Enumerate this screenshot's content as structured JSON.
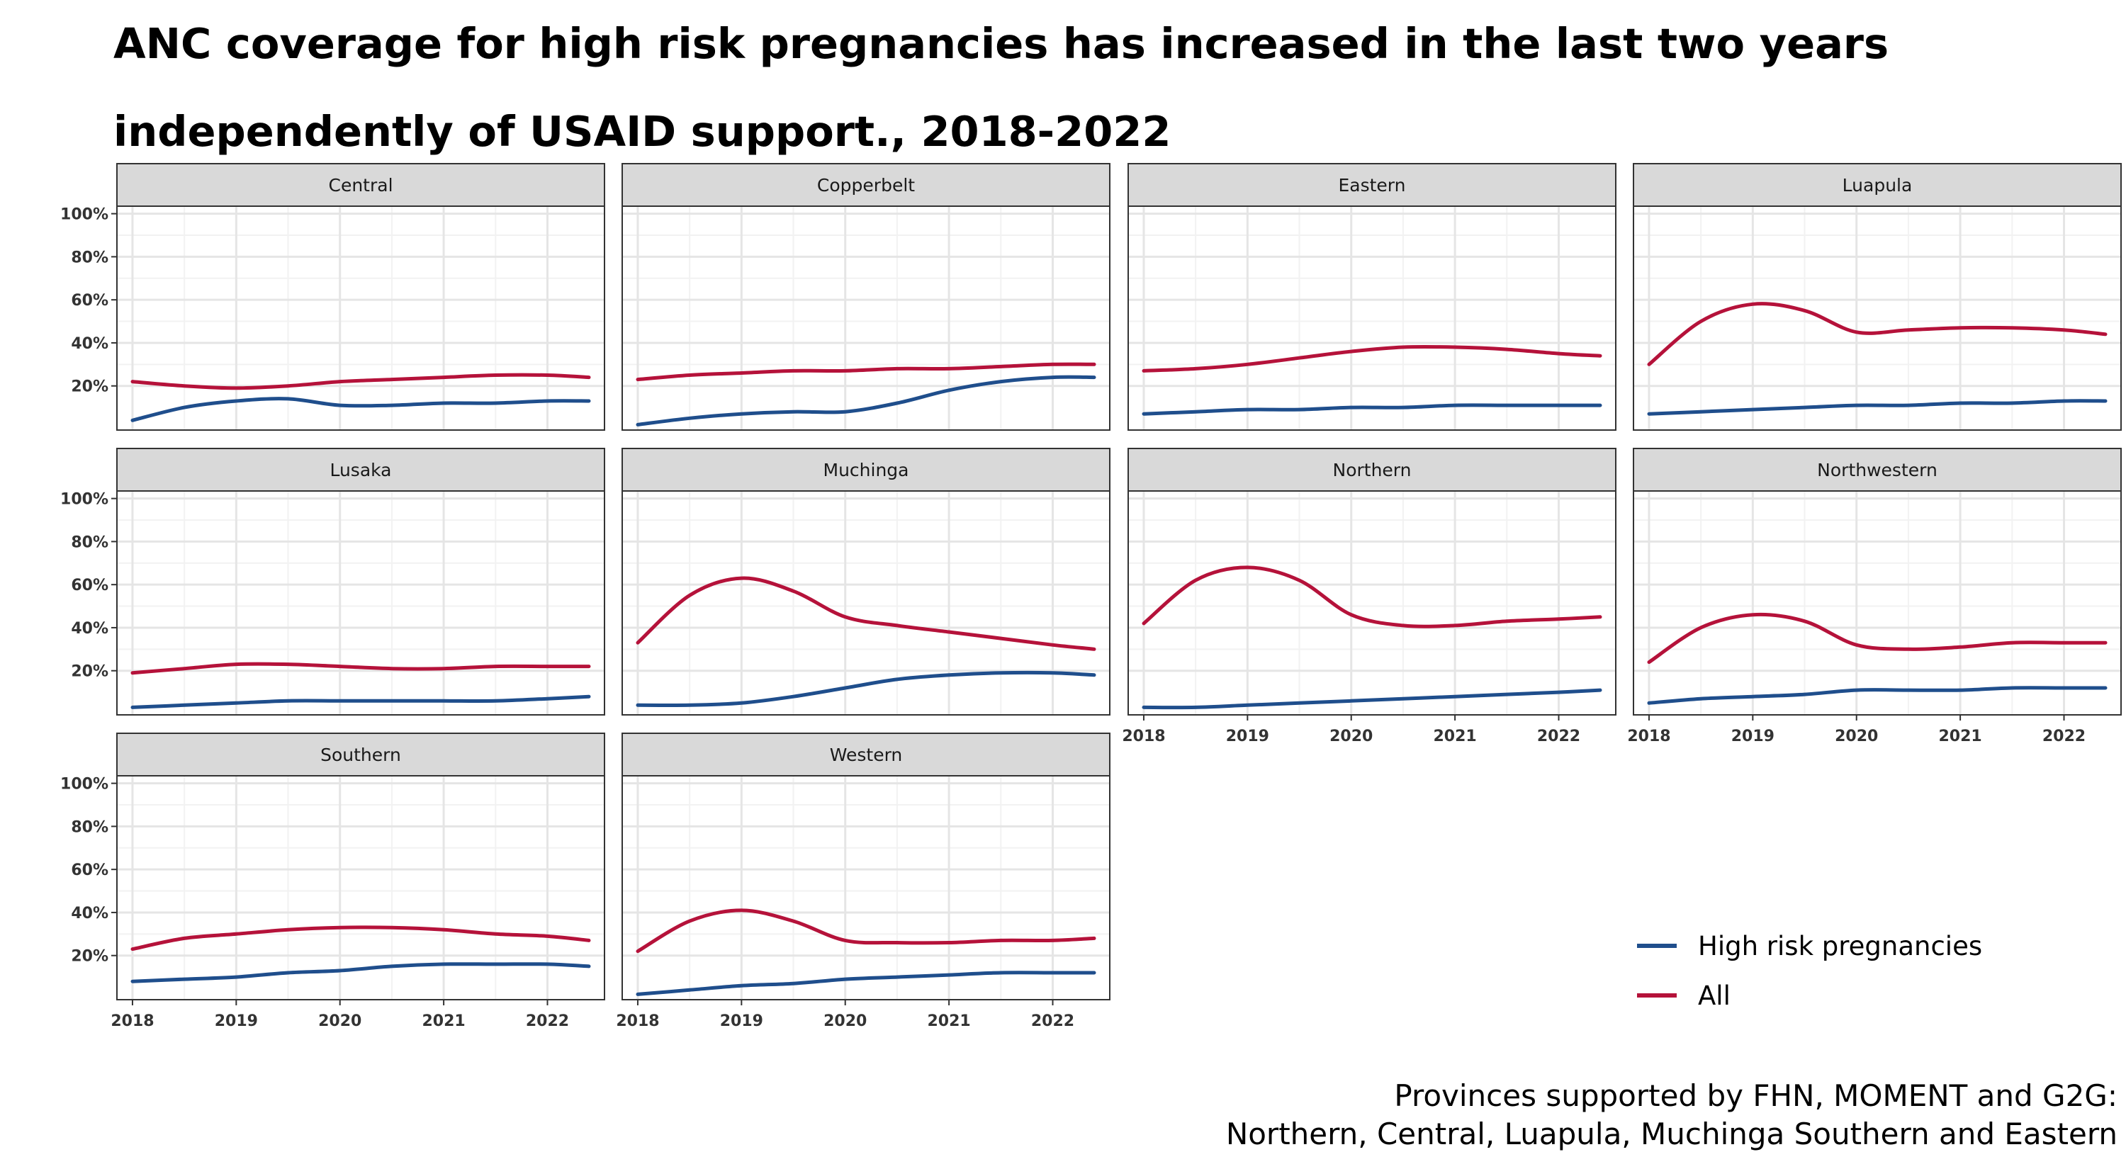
{
  "title": "ANC coverage for high risk pregnancies has increased in the last two years independently of USAID support., 2018-2022",
  "caption": {
    "line1": "Provinces supported by FHN, MOMENT and G2G:",
    "line2": "Northern, Central, Luapula, Muchinga Southern and Eastern"
  },
  "colors": {
    "high_risk": "#1f4e8c",
    "all": "#b5123a"
  },
  "chart_data": {
    "type": "line",
    "facet": "province",
    "xlabel": "",
    "ylabel": "",
    "x_ticks": [
      2018,
      2019,
      2020,
      2021,
      2022
    ],
    "y_ticks": [
      "20%",
      "40%",
      "60%",
      "80%",
      "100%"
    ],
    "xlim": [
      2017.85,
      2022.55
    ],
    "ylim": [
      -0.5,
      103.5
    ],
    "grid": true,
    "legend_position": "bottom-right",
    "legend": [
      "High risk pregnancies",
      "All"
    ],
    "x": [
      2018.0,
      2018.5,
      2019.0,
      2019.5,
      2020.0,
      2020.5,
      2021.0,
      2021.5,
      2022.0,
      2022.4
    ],
    "panels": [
      {
        "name": "Central",
        "series": [
          {
            "name": "High risk pregnancies",
            "values": [
              4,
              10,
              13,
              14,
              11,
              11,
              12,
              12,
              13,
              13
            ]
          },
          {
            "name": "All",
            "values": [
              22,
              20,
              19,
              20,
              22,
              23,
              24,
              25,
              25,
              24
            ]
          }
        ]
      },
      {
        "name": "Copperbelt",
        "series": [
          {
            "name": "High risk pregnancies",
            "values": [
              2,
              5,
              7,
              8,
              8,
              12,
              18,
              22,
              24,
              24
            ]
          },
          {
            "name": "All",
            "values": [
              23,
              25,
              26,
              27,
              27,
              28,
              28,
              29,
              30,
              30
            ]
          }
        ]
      },
      {
        "name": "Eastern",
        "series": [
          {
            "name": "High risk pregnancies",
            "values": [
              7,
              8,
              9,
              9,
              10,
              10,
              11,
              11,
              11,
              11
            ]
          },
          {
            "name": "All",
            "values": [
              27,
              28,
              30,
              33,
              36,
              38,
              38,
              37,
              35,
              34
            ]
          }
        ]
      },
      {
        "name": "Luapula",
        "series": [
          {
            "name": "High risk pregnancies",
            "values": [
              7,
              8,
              9,
              10,
              11,
              11,
              12,
              12,
              13,
              13
            ]
          },
          {
            "name": "All",
            "values": [
              30,
              50,
              58,
              55,
              45,
              46,
              47,
              47,
              46,
              44
            ]
          }
        ]
      },
      {
        "name": "Lusaka",
        "series": [
          {
            "name": "High risk pregnancies",
            "values": [
              3,
              4,
              5,
              6,
              6,
              6,
              6,
              6,
              7,
              8
            ]
          },
          {
            "name": "All",
            "values": [
              19,
              21,
              23,
              23,
              22,
              21,
              21,
              22,
              22,
              22
            ]
          }
        ]
      },
      {
        "name": "Muchinga",
        "series": [
          {
            "name": "High risk pregnancies",
            "values": [
              4,
              4,
              5,
              8,
              12,
              16,
              18,
              19,
              19,
              18
            ]
          },
          {
            "name": "All",
            "values": [
              33,
              55,
              63,
              57,
              45,
              41,
              38,
              35,
              32,
              30
            ]
          }
        ]
      },
      {
        "name": "Northern",
        "series": [
          {
            "name": "High risk pregnancies",
            "values": [
              3,
              3,
              4,
              5,
              6,
              7,
              8,
              9,
              10,
              11
            ]
          },
          {
            "name": "All",
            "values": [
              42,
              62,
              68,
              62,
              46,
              41,
              41,
              43,
              44,
              45
            ]
          }
        ]
      },
      {
        "name": "Northwestern",
        "series": [
          {
            "name": "High risk pregnancies",
            "values": [
              5,
              7,
              8,
              9,
              11,
              11,
              11,
              12,
              12,
              12
            ]
          },
          {
            "name": "All",
            "values": [
              24,
              40,
              46,
              43,
              32,
              30,
              31,
              33,
              33,
              33
            ]
          }
        ]
      },
      {
        "name": "Southern",
        "series": [
          {
            "name": "High risk pregnancies",
            "values": [
              8,
              9,
              10,
              12,
              13,
              15,
              16,
              16,
              16,
              15
            ]
          },
          {
            "name": "All",
            "values": [
              23,
              28,
              30,
              32,
              33,
              33,
              32,
              30,
              29,
              27
            ]
          }
        ]
      },
      {
        "name": "Western",
        "series": [
          {
            "name": "High risk pregnancies",
            "values": [
              2,
              4,
              6,
              7,
              9,
              10,
              11,
              12,
              12,
              12
            ]
          },
          {
            "name": "All",
            "values": [
              22,
              36,
              41,
              36,
              27,
              26,
              26,
              27,
              27,
              28
            ]
          }
        ]
      }
    ]
  }
}
